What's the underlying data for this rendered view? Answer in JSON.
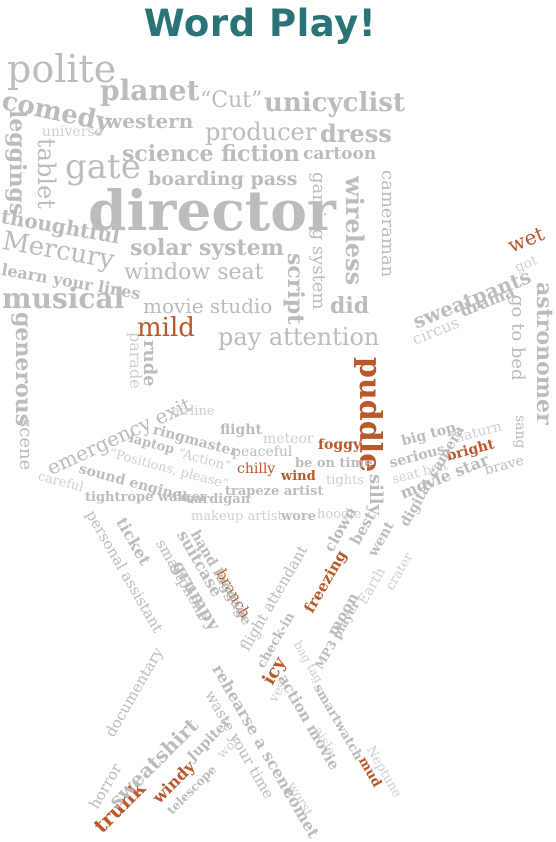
{
  "title": "Word Play!",
  "colors": {
    "title": "#2a7478",
    "primary": "#bcbcbc",
    "accent": "#b9582a",
    "dim": "#cfcfcf"
  },
  "words": [
    {
      "text": "polite",
      "color": "primary"
    },
    {
      "text": "planet",
      "color": "primary"
    },
    {
      "text": "“Cut”",
      "color": "primary"
    },
    {
      "text": "unicyclist",
      "color": "primary"
    },
    {
      "text": "comedy",
      "color": "primary"
    },
    {
      "text": "western",
      "color": "primary"
    },
    {
      "text": "producer",
      "color": "primary"
    },
    {
      "text": "dress",
      "color": "primary"
    },
    {
      "text": "universe",
      "color": "dim"
    },
    {
      "text": "science fiction",
      "color": "primary"
    },
    {
      "text": "cartoon",
      "color": "primary"
    },
    {
      "text": "gate",
      "color": "primary"
    },
    {
      "text": "boarding pass",
      "color": "primary"
    },
    {
      "text": "director",
      "color": "primary"
    },
    {
      "text": "thoughtful",
      "color": "primary"
    },
    {
      "text": "solar system",
      "color": "primary"
    },
    {
      "text": "Mercury",
      "color": "primary"
    },
    {
      "text": "window seat",
      "color": "primary"
    },
    {
      "text": "learn your lines",
      "color": "primary"
    },
    {
      "text": "musical",
      "color": "primary"
    },
    {
      "text": "movie studio",
      "color": "primary"
    },
    {
      "text": "did",
      "color": "primary"
    },
    {
      "text": "mild",
      "color": "accent"
    },
    {
      "text": "pay attention",
      "color": "primary"
    },
    {
      "text": "leggings",
      "color": "primary"
    },
    {
      "text": "tablet",
      "color": "primary"
    },
    {
      "text": "gaming system",
      "color": "primary"
    },
    {
      "text": "wireless",
      "color": "primary"
    },
    {
      "text": "cameraman",
      "color": "primary"
    },
    {
      "text": "script",
      "color": "primary"
    },
    {
      "text": "sweatpants",
      "color": "primary"
    },
    {
      "text": "wet",
      "color": "accent"
    },
    {
      "text": "got",
      "color": "dim"
    },
    {
      "text": "circus",
      "color": "dim"
    },
    {
      "text": "drama",
      "color": "primary"
    },
    {
      "text": "go to bed",
      "color": "primary"
    },
    {
      "text": "sang",
      "color": "primary"
    },
    {
      "text": "astronomer",
      "color": "primary"
    },
    {
      "text": "generous",
      "color": "primary"
    },
    {
      "text": "scene",
      "color": "primary"
    },
    {
      "text": "parade",
      "color": "dim"
    },
    {
      "text": "rude",
      "color": "primary"
    },
    {
      "text": "puddle",
      "color": "accent"
    },
    {
      "text": "silly",
      "color": "primary"
    },
    {
      "text": "emergency exit",
      "color": "primary"
    },
    {
      "text": "airline",
      "color": "dim"
    },
    {
      "text": "ringmaster",
      "color": "primary"
    },
    {
      "text": "flight",
      "color": "primary"
    },
    {
      "text": "meteor",
      "color": "dim"
    },
    {
      "text": "foggy",
      "color": "accent"
    },
    {
      "text": "big top",
      "color": "primary"
    },
    {
      "text": "Saturn",
      "color": "dim"
    },
    {
      "text": "laptop",
      "color": "primary"
    },
    {
      "text": "“Action”",
      "color": "dim"
    },
    {
      "text": "peaceful",
      "color": "primary"
    },
    {
      "text": "be on time",
      "color": "primary"
    },
    {
      "text": "serious",
      "color": "primary"
    },
    {
      "text": "bright",
      "color": "accent"
    },
    {
      "text": "brave",
      "color": "primary"
    },
    {
      "text": "“Positions, please”",
      "color": "dim"
    },
    {
      "text": "chilly",
      "color": "accent"
    },
    {
      "text": "wind",
      "color": "accent"
    },
    {
      "text": "tights",
      "color": "dim"
    },
    {
      "text": "seat belt",
      "color": "dim"
    },
    {
      "text": "sound engineer",
      "color": "primary"
    },
    {
      "text": "trapeze artist",
      "color": "primary"
    },
    {
      "text": "movie star",
      "color": "primary"
    },
    {
      "text": "careful",
      "color": "dim"
    },
    {
      "text": "cardigan",
      "color": "primary"
    },
    {
      "text": "tightrope walker",
      "color": "primary"
    },
    {
      "text": "makeup artist",
      "color": "dim"
    },
    {
      "text": "wore",
      "color": "primary"
    },
    {
      "text": "hoodie",
      "color": "dim"
    },
    {
      "text": "digital camera",
      "color": "primary"
    },
    {
      "text": "personal assistant",
      "color": "primary"
    },
    {
      "text": "ticket",
      "color": "primary"
    },
    {
      "text": "smartphone",
      "color": "primary"
    },
    {
      "text": "grumpy",
      "color": "primary"
    },
    {
      "text": "suitcase",
      "color": "primary"
    },
    {
      "text": "branch",
      "color": "accent"
    },
    {
      "text": "hand luggage",
      "color": "primary"
    },
    {
      "text": "clown",
      "color": "primary"
    },
    {
      "text": "best",
      "color": "primary"
    },
    {
      "text": "went",
      "color": "primary"
    },
    {
      "text": "flight attendant",
      "color": "primary"
    },
    {
      "text": "freezing",
      "color": "accent"
    },
    {
      "text": "moon",
      "color": "primary"
    },
    {
      "text": "Earth",
      "color": "dim"
    },
    {
      "text": "crater",
      "color": "dim"
    },
    {
      "text": "check-in",
      "color": "primary"
    },
    {
      "text": "MP3 player",
      "color": "primary"
    },
    {
      "text": "bag tag",
      "color": "dim"
    },
    {
      "text": "icy",
      "color": "accent"
    },
    {
      "text": "vest",
      "color": "dim"
    },
    {
      "text": "action movie",
      "color": "primary"
    },
    {
      "text": "smartwatch",
      "color": "primary"
    },
    {
      "text": "aisle",
      "color": "dim"
    },
    {
      "text": "Neptune",
      "color": "dim"
    },
    {
      "text": "mud",
      "color": "accent"
    },
    {
      "text": "rehearse a scene",
      "color": "primary"
    },
    {
      "text": "waste your time",
      "color": "primary"
    },
    {
      "text": "worst",
      "color": "dim"
    },
    {
      "text": "comet",
      "color": "primary"
    },
    {
      "text": "horror",
      "color": "primary"
    },
    {
      "text": "documentary",
      "color": "primary"
    },
    {
      "text": "trunk",
      "color": "accent"
    },
    {
      "text": "sweatshirt",
      "color": "primary"
    },
    {
      "text": "windy",
      "color": "accent"
    },
    {
      "text": "Jupiter",
      "color": "primary"
    },
    {
      "text": "telescope",
      "color": "primary"
    },
    {
      "text": "won",
      "color": "dim"
    }
  ]
}
